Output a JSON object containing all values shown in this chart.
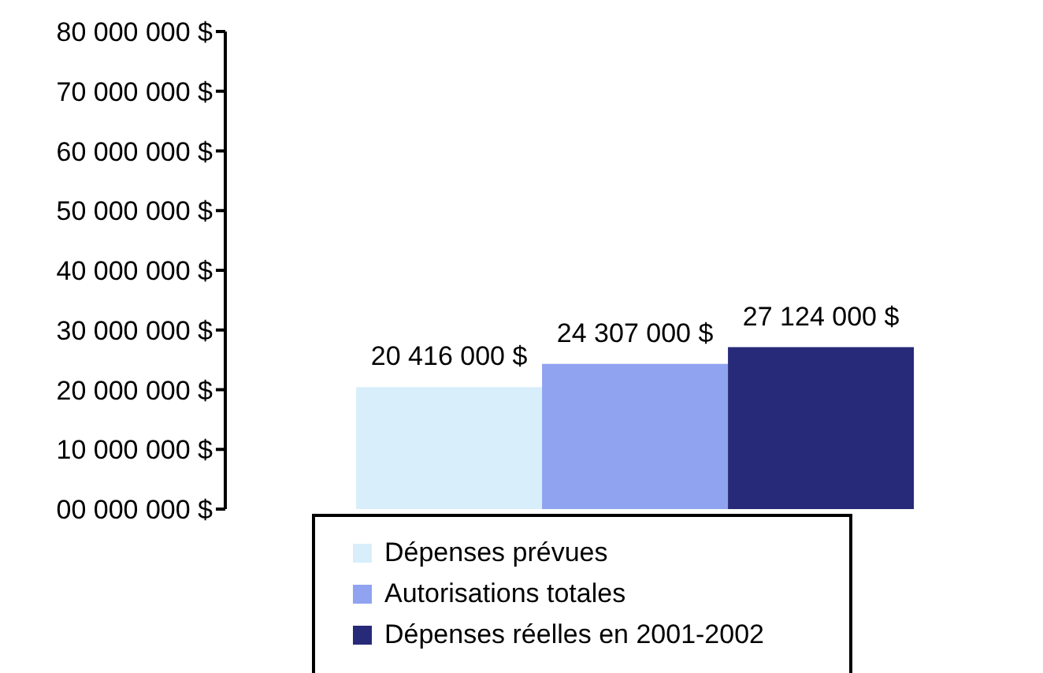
{
  "chart_data": {
    "type": "bar",
    "categories": [
      null
    ],
    "series": [
      {
        "name": "Dépenses prévues",
        "color": "#d8eefb",
        "values": [
          20416000
        ],
        "value_labels": [
          "20 416 000 $"
        ]
      },
      {
        "name": "Autorisations totales",
        "color": "#8fa3f0",
        "values": [
          24307000
        ],
        "value_labels": [
          "24 307 000 $"
        ]
      },
      {
        "name": "Dépenses réelles en 2001-2002",
        "color": "#272a78",
        "values": [
          27124000
        ],
        "value_labels": [
          "27 124 000 $"
        ]
      }
    ],
    "ylim": [
      0,
      80000000
    ],
    "yticks": [
      {
        "value": 0,
        "label": "00 000 000 $"
      },
      {
        "value": 10000000,
        "label": "10 000 000 $"
      },
      {
        "value": 20000000,
        "label": "20 000 000 $"
      },
      {
        "value": 30000000,
        "label": "30 000 000 $"
      },
      {
        "value": 40000000,
        "label": "40 000 000 $"
      },
      {
        "value": 50000000,
        "label": "50 000 000 $"
      },
      {
        "value": 60000000,
        "label": "60 000 000 $"
      },
      {
        "value": 70000000,
        "label": "70 000 000 $"
      },
      {
        "value": 80000000,
        "label": "80 000 000 $"
      }
    ],
    "grid": false,
    "legend": "bottom"
  }
}
